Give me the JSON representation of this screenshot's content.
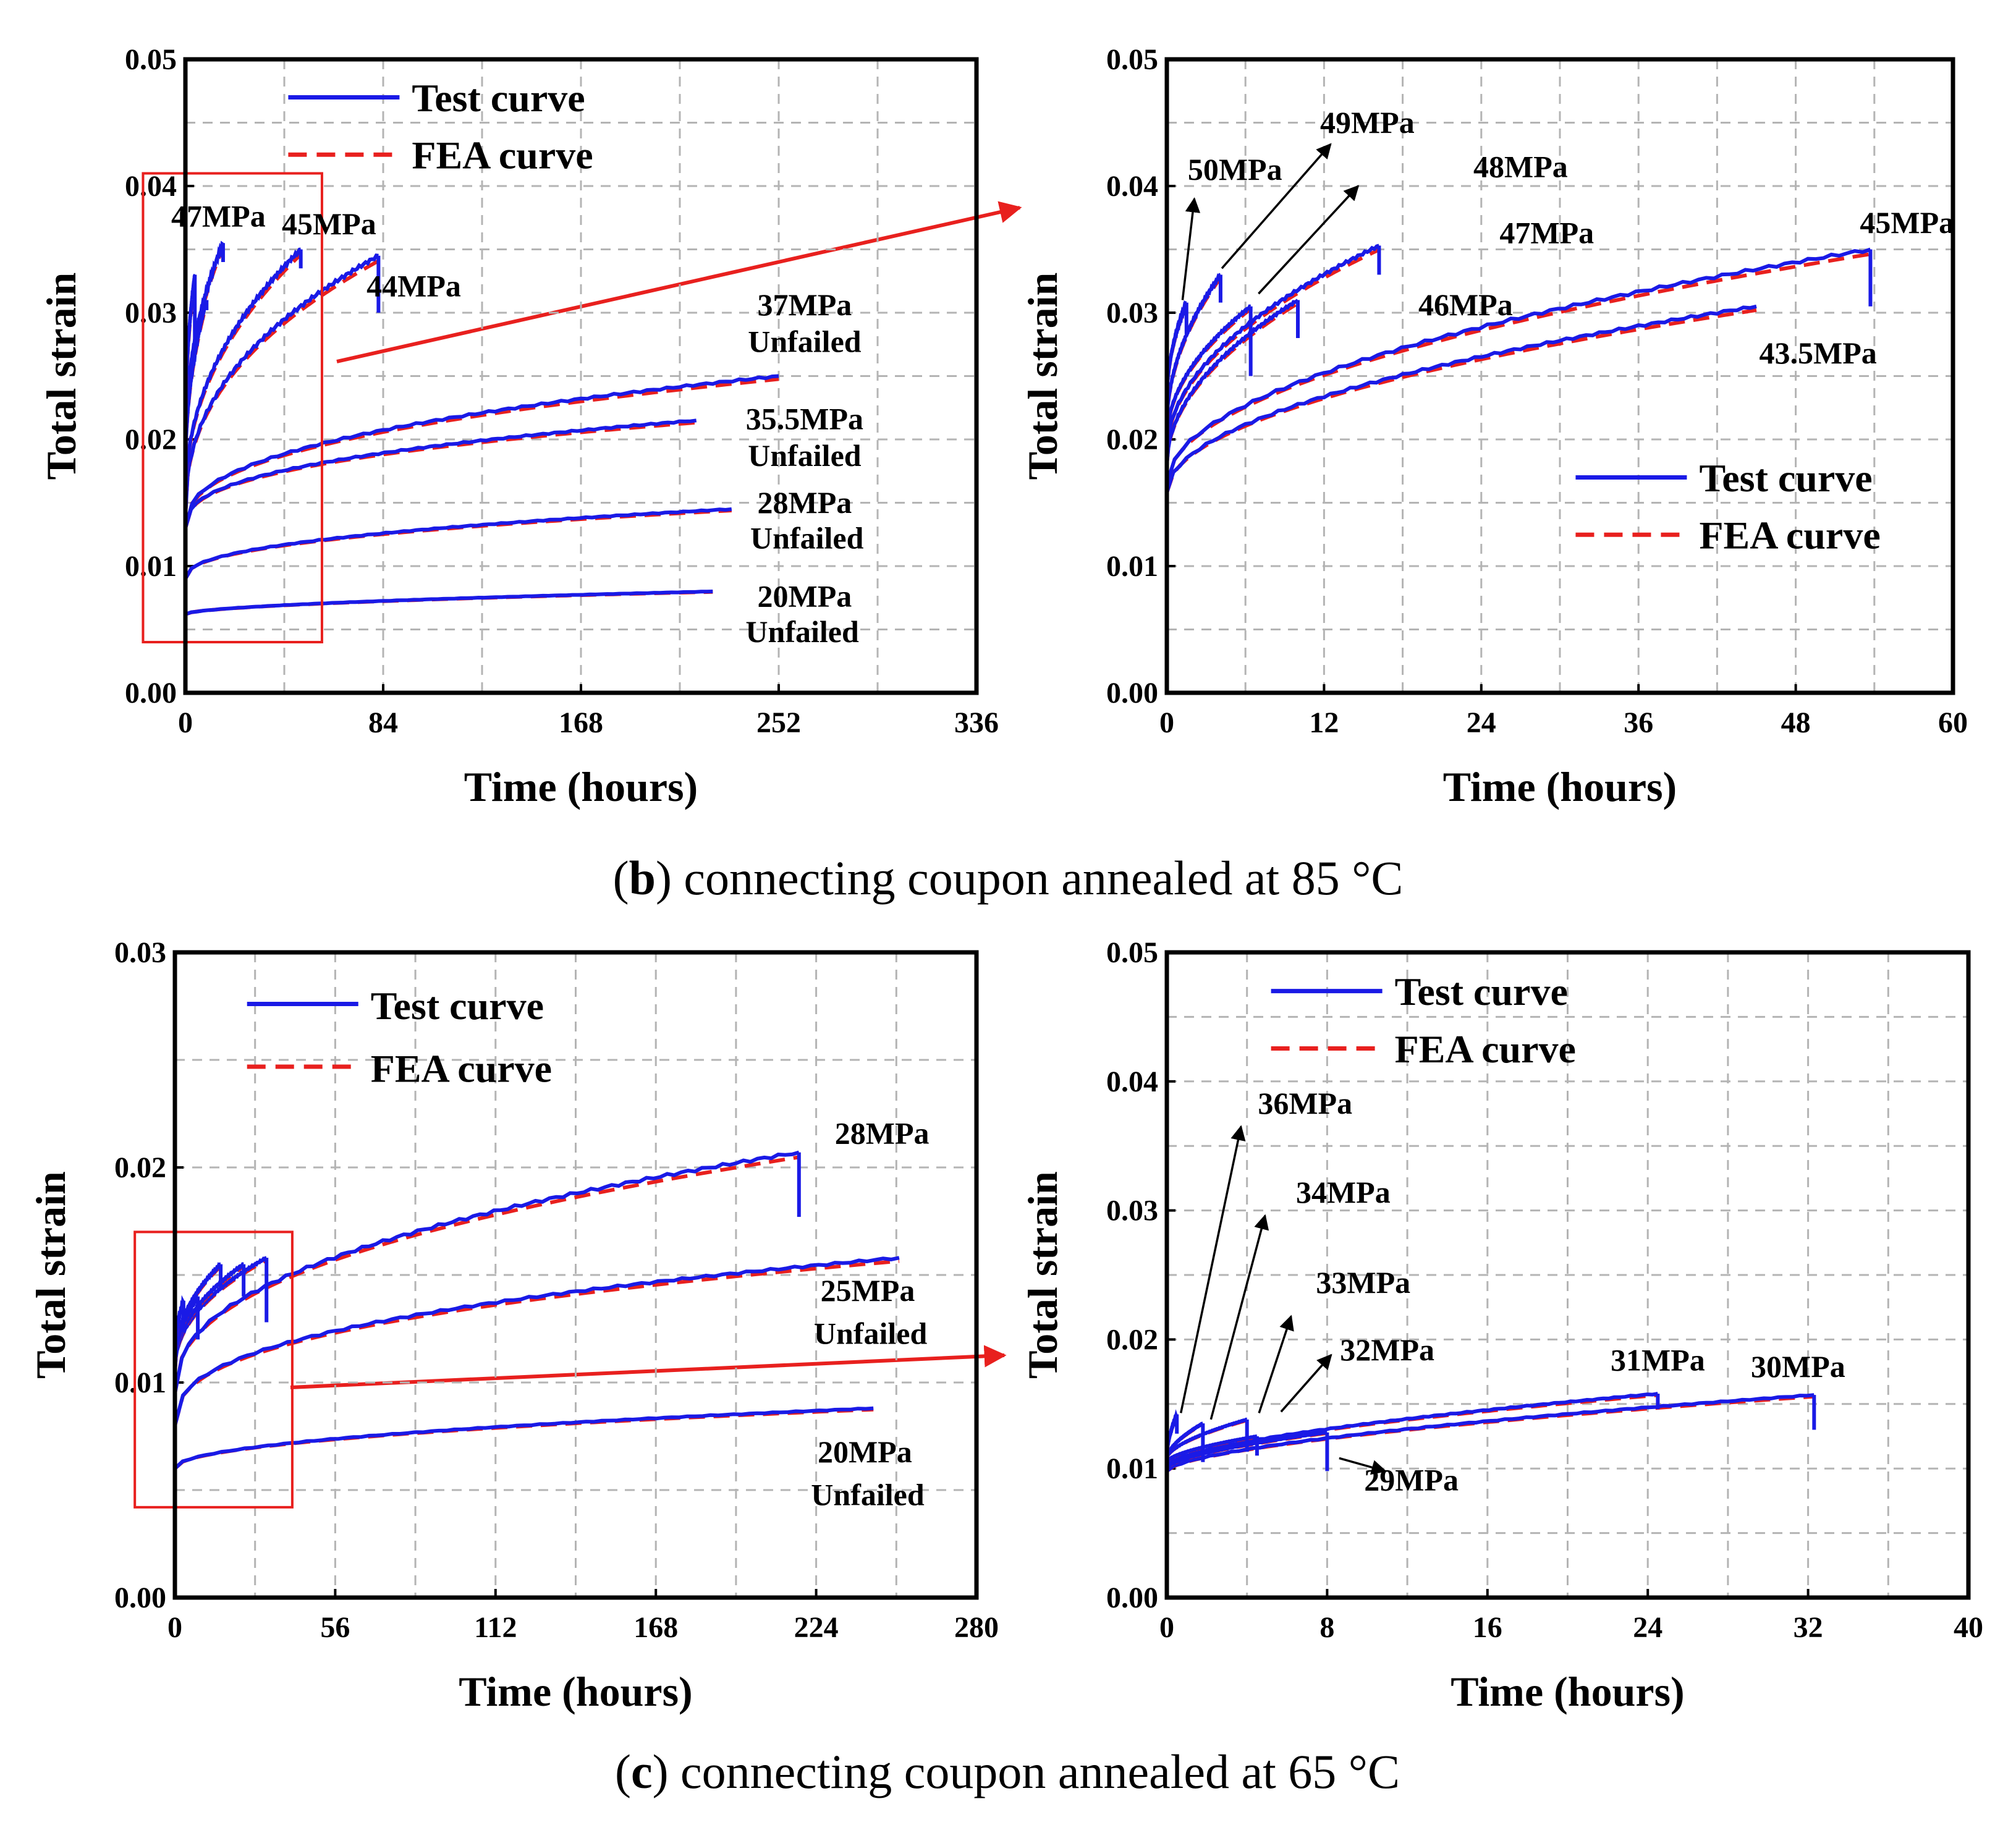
{
  "figure": {
    "caption_b": {
      "open": "(",
      "letter": "b",
      "rest": ") connecting coupon annealed at 85 °C"
    },
    "caption_c": {
      "open": "(",
      "letter": "c",
      "rest": ") connecting coupon annealed at 65 °C"
    }
  },
  "colors": {
    "test": "#1a1ae6",
    "fea": "#e8201e",
    "zoom_box": "#e8201e",
    "grid": "#b4b4b4"
  },
  "chart_data": [
    {
      "id": "b-left",
      "type": "line",
      "xlabel": "Time (hours)",
      "ylabel": "Total strain",
      "xlim": [
        0,
        336
      ],
      "ylim": [
        0,
        0.05
      ],
      "xticks": [
        0,
        84,
        168,
        252,
        336
      ],
      "yticks": [
        0,
        0.01,
        0.02,
        0.03,
        0.04,
        0.05
      ],
      "xtick_labels": [
        "0",
        "84",
        "168",
        "252",
        "336"
      ],
      "ytick_labels": [
        "0.00",
        "0.01",
        "0.02",
        "0.03",
        "0.04",
        "0.05"
      ],
      "x_grid_step": 42,
      "y_grid_step": 0.005,
      "legend": {
        "placement": "top-center",
        "test_label": "Test curve",
        "fea_label": "FEA curve",
        "font": 64
      },
      "zoom_box": {
        "x": [
          -18,
          58
        ],
        "y": [
          0.004,
          0.041
        ]
      },
      "curves": [
        {
          "e0": 0.0062,
          "e1": 0.008,
          "t_end": 224,
          "p": 0.55,
          "failed": false
        },
        {
          "e0": 0.009,
          "e1": 0.0145,
          "t_end": 232,
          "p": 0.42,
          "failed": false
        },
        {
          "e0": 0.013,
          "e1": 0.0215,
          "t_end": 217,
          "p": 0.38,
          "failed": false
        },
        {
          "e0": 0.013,
          "e1": 0.025,
          "t_end": 252,
          "p": 0.4,
          "failed": false
        },
        {
          "e0": 0.014,
          "e1": 0.0345,
          "t_end": 82,
          "p": 0.42,
          "failed": true,
          "drop": 0.0045
        },
        {
          "e0": 0.015,
          "e1": 0.035,
          "t_end": 49,
          "p": 0.45,
          "failed": true,
          "drop": 0.0015
        },
        {
          "e0": 0.019,
          "e1": 0.0355,
          "t_end": 16,
          "p": 0.45,
          "failed": true,
          "drop": 0.0015
        },
        {
          "e0": 0.017,
          "e1": 0.031,
          "t_end": 9,
          "p": 0.45,
          "failed": true,
          "drop": 0.0008
        },
        {
          "e0": 0.02,
          "e1": 0.033,
          "t_end": 4,
          "p": 0.45,
          "failed": true,
          "drop": 0.006
        }
      ],
      "annotations": [
        {
          "text": "47MPa",
          "x": 14,
          "y": 0.0368
        },
        {
          "text": "45MPa",
          "x": 61,
          "y": 0.0362
        },
        {
          "text": "44MPa",
          "x": 97,
          "y": 0.0313
        },
        {
          "text": "37MPa",
          "x": 263,
          "y": 0.0298
        },
        {
          "text": "Unfailed",
          "x": 263,
          "y": 0.0269
        },
        {
          "text": "35.5MPa",
          "x": 263,
          "y": 0.0208
        },
        {
          "text": "Unfailed",
          "x": 263,
          "y": 0.0179
        },
        {
          "text": "28MPa",
          "x": 263,
          "y": 0.0142
        },
        {
          "text": "Unfailed",
          "x": 264,
          "y": 0.0114
        },
        {
          "text": "20MPa",
          "x": 263,
          "y": 0.0068
        },
        {
          "text": "Unfailed",
          "x": 262,
          "y": 0.004
        }
      ]
    },
    {
      "id": "b-right",
      "type": "line",
      "xlabel": "Time (hours)",
      "ylabel": "Total strain",
      "xlim": [
        0,
        60
      ],
      "ylim": [
        0,
        0.05
      ],
      "xticks": [
        0,
        12,
        24,
        36,
        48,
        60
      ],
      "yticks": [
        0,
        0.01,
        0.02,
        0.03,
        0.04,
        0.05
      ],
      "xtick_labels": [
        "0",
        "12",
        "24",
        "36",
        "48",
        "60"
      ],
      "ytick_labels": [
        "0.00",
        "0.01",
        "0.02",
        "0.03",
        "0.04",
        "0.05"
      ],
      "x_grid_step": 6,
      "y_grid_step": 0.005,
      "legend": {
        "placement": "bottom-right",
        "test_label": "Test curve",
        "fea_label": "FEA  curve",
        "font": 64
      },
      "curves": [
        {
          "e0": 0.0158,
          "e1": 0.0305,
          "t_end": 45,
          "p": 0.5,
          "failed": true,
          "drop": 0.0
        },
        {
          "e0": 0.0165,
          "e1": 0.035,
          "t_end": 53.7,
          "p": 0.5,
          "failed": true,
          "drop": 0.0045
        },
        {
          "e0": 0.018,
          "e1": 0.031,
          "t_end": 10,
          "p": 0.5,
          "failed": true,
          "drop": 0.003
        },
        {
          "e0": 0.019,
          "e1": 0.0353,
          "t_end": 16.2,
          "p": 0.5,
          "failed": true,
          "drop": 0.0023
        },
        {
          "e0": 0.02,
          "e1": 0.0305,
          "t_end": 6.4,
          "p": 0.5,
          "failed": true,
          "drop": 0.0055
        },
        {
          "e0": 0.021,
          "e1": 0.033,
          "t_end": 4.1,
          "p": 0.5,
          "failed": true,
          "drop": 0.0022
        },
        {
          "e0": 0.023,
          "e1": 0.0308,
          "t_end": 1.5,
          "p": 0.5,
          "failed": true,
          "drop": 0.0025
        }
      ],
      "annotations": [
        {
          "text": "50MPa",
          "x": 5.2,
          "y": 0.0405
        },
        {
          "text": "49MPa",
          "x": 15.3,
          "y": 0.0442
        },
        {
          "text": "48MPa",
          "x": 27.0,
          "y": 0.0407
        },
        {
          "text": "47MPa",
          "x": 29.0,
          "y": 0.0355
        },
        {
          "text": "45MPa",
          "x": 56.5,
          "y": 0.0363
        },
        {
          "text": "46MPa",
          "x": 22.8,
          "y": 0.0298
        },
        {
          "text": "43.5MPa",
          "x": 49.7,
          "y": 0.026
        }
      ],
      "arrows": [
        {
          "from": [
            1.2,
            0.031
          ],
          "to": [
            2.1,
            0.039
          ]
        },
        {
          "from": [
            4.2,
            0.0335
          ],
          "to": [
            12.5,
            0.0433
          ]
        },
        {
          "from": [
            7.0,
            0.0315
          ],
          "to": [
            14.6,
            0.04
          ]
        }
      ]
    },
    {
      "id": "c-left",
      "type": "line",
      "xlabel": "Time (hours)",
      "ylabel": "Total strain",
      "xlim": [
        0,
        280
      ],
      "ylim": [
        0,
        0.03
      ],
      "xticks": [
        0,
        56,
        112,
        168,
        224,
        280
      ],
      "yticks": [
        0,
        0.01,
        0.02,
        0.03
      ],
      "xtick_labels": [
        "0",
        "56",
        "112",
        "168",
        "224",
        "280"
      ],
      "ytick_labels": [
        "0.00",
        "0.01",
        "0.02",
        "0.03"
      ],
      "x_grid_step": 28,
      "y_grid_step": 0.005,
      "legend": {
        "placement": "top-left",
        "test_label": "Test curve",
        "fea_label": "FEA curve",
        "font": 70
      },
      "zoom_box": {
        "x": [
          -14,
          41
        ],
        "y": [
          0.0042,
          0.017
        ]
      },
      "curves": [
        {
          "e0": 0.006,
          "e1": 0.0088,
          "t_end": 244,
          "p": 0.48,
          "failed": false
        },
        {
          "e0": 0.008,
          "e1": 0.0158,
          "t_end": 253,
          "p": 0.38,
          "failed": false
        },
        {
          "e0": 0.0095,
          "e1": 0.0207,
          "t_end": 218,
          "p": 0.42,
          "failed": true,
          "drop": 0.003
        },
        {
          "e0": 0.0105,
          "e1": 0.0158,
          "t_end": 32,
          "p": 0.45,
          "failed": true,
          "drop": 0.003
        },
        {
          "e0": 0.0105,
          "e1": 0.0155,
          "t_end": 24,
          "p": 0.45,
          "failed": true,
          "drop": 0.0015
        },
        {
          "e0": 0.0108,
          "e1": 0.0155,
          "t_end": 16,
          "p": 0.45,
          "failed": true,
          "drop": 0.0012
        },
        {
          "e0": 0.0105,
          "e1": 0.014,
          "t_end": 8,
          "p": 0.45,
          "failed": true,
          "drop": 0.002
        },
        {
          "e0": 0.011,
          "e1": 0.0138,
          "t_end": 3,
          "p": 0.45,
          "failed": true,
          "drop": 0.001
        }
      ],
      "annotations": [
        {
          "text": "28MPa",
          "x": 247,
          "y": 0.0211
        },
        {
          "text": "25MPa",
          "x": 242,
          "y": 0.0138
        },
        {
          "text": "Unfailed",
          "x": 243,
          "y": 0.0118
        },
        {
          "text": "20MPa",
          "x": 241,
          "y": 0.0063
        },
        {
          "text": "Unfailed",
          "x": 242,
          "y": 0.0043
        }
      ]
    },
    {
      "id": "c-right",
      "type": "line",
      "xlabel": "Time (hours)",
      "ylabel": "Total strain",
      "xlim": [
        0,
        40
      ],
      "ylim": [
        0,
        0.05
      ],
      "xticks": [
        0,
        8,
        16,
        24,
        32,
        40
      ],
      "yticks": [
        0,
        0.01,
        0.02,
        0.03,
        0.04,
        0.05
      ],
      "xtick_labels": [
        "0",
        "8",
        "16",
        "24",
        "32",
        "40"
      ],
      "ytick_labels": [
        "0.00",
        "0.01",
        "0.02",
        "0.03",
        "0.04",
        "0.05"
      ],
      "x_grid_step": 4,
      "y_grid_step": 0.005,
      "legend": {
        "placement": "top-center",
        "test_label": "Test curve",
        "fea_label": "FEA curve",
        "font": 64
      },
      "curves": [
        {
          "e0": 0.0098,
          "e1": 0.0157,
          "t_end": 32.3,
          "p": 0.6,
          "failed": true,
          "drop": 0.0027
        },
        {
          "e0": 0.0102,
          "e1": 0.0158,
          "t_end": 24.5,
          "p": 0.6,
          "failed": true,
          "drop": 0.0012
        },
        {
          "e0": 0.01,
          "e1": 0.0128,
          "t_end": 8.0,
          "p": 0.6,
          "failed": true,
          "drop": 0.003
        },
        {
          "e0": 0.0105,
          "e1": 0.0125,
          "t_end": 4.5,
          "p": 0.6,
          "failed": true,
          "drop": 0.0015
        },
        {
          "e0": 0.0108,
          "e1": 0.0138,
          "t_end": 4.0,
          "p": 0.6,
          "failed": true,
          "drop": 0.0025
        },
        {
          "e0": 0.0108,
          "e1": 0.0135,
          "t_end": 1.8,
          "p": 0.6,
          "failed": true,
          "drop": 0.003
        },
        {
          "e0": 0.011,
          "e1": 0.0142,
          "t_end": 0.5,
          "p": 0.6,
          "failed": true,
          "drop": 0.0015
        }
      ],
      "annotations": [
        {
          "text": "36MPa",
          "x": 6.9,
          "y": 0.0375
        },
        {
          "text": "34MPa",
          "x": 8.8,
          "y": 0.0306
        },
        {
          "text": "33MPa",
          "x": 9.8,
          "y": 0.0236
        },
        {
          "text": "32MPa",
          "x": 11.0,
          "y": 0.0184
        },
        {
          "text": "31MPa",
          "x": 24.5,
          "y": 0.0176
        },
        {
          "text": "30MPa",
          "x": 31.5,
          "y": 0.0171
        },
        {
          "text": "29MPa",
          "x": 12.2,
          "y": 0.0083
        }
      ],
      "arrows": [
        {
          "from": [
            0.7,
            0.0143
          ],
          "to": [
            3.7,
            0.0365
          ]
        },
        {
          "from": [
            2.2,
            0.0138
          ],
          "to": [
            4.9,
            0.0296
          ]
        },
        {
          "from": [
            4.6,
            0.0143
          ],
          "to": [
            6.2,
            0.0218
          ]
        },
        {
          "from": [
            5.7,
            0.0144
          ],
          "to": [
            8.2,
            0.0188
          ]
        },
        {
          "from": [
            8.6,
            0.0108
          ],
          "to": [
            10.9,
            0.0098
          ]
        }
      ]
    }
  ]
}
